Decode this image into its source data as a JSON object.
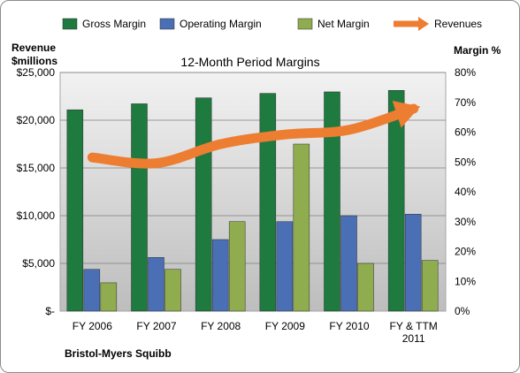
{
  "chart_data": {
    "type": "bar",
    "title": "12-Month Period Margins",
    "company": "Bristol-Myers Squibb",
    "left_axis_title": [
      "Revenue",
      "$millions"
    ],
    "right_axis_title": "Margin %",
    "categories": [
      [
        "FY 2006"
      ],
      [
        "FY 2007"
      ],
      [
        "FY 2008"
      ],
      [
        "FY 2009"
      ],
      [
        "FY 2010"
      ],
      [
        "FY & TTM",
        "2011"
      ]
    ],
    "left_ticks": [
      "$-",
      "$5,000",
      "$10,000",
      "$15,000",
      "$20,000",
      "$25,000"
    ],
    "right_ticks": [
      "0%",
      "10%",
      "20%",
      "30%",
      "40%",
      "50%",
      "60%",
      "70%",
      "80%"
    ],
    "ylim_left": [
      0,
      25000
    ],
    "ylim_right": [
      0,
      80
    ],
    "grid": true,
    "legend_position": "top",
    "series": [
      {
        "name": "Gross Margin",
        "axis": "right",
        "color": "#1f7a3f",
        "values": [
          67.5,
          69.5,
          71.5,
          73.0,
          73.5,
          74.0
        ]
      },
      {
        "name": "Operating Margin",
        "axis": "right",
        "color": "#4a6fb5",
        "values": [
          14.0,
          18.0,
          24.0,
          30.0,
          32.0,
          32.5
        ]
      },
      {
        "name": "Net Margin",
        "axis": "right",
        "color": "#8fad4f",
        "values": [
          9.5,
          14.0,
          30.0,
          56.0,
          16.0,
          17.0
        ]
      },
      {
        "name": "Revenues",
        "axis": "left",
        "type": "line",
        "color": "#ed7d31",
        "values": [
          16100,
          15500,
          17500,
          18500,
          19000,
          21200
        ]
      }
    ]
  }
}
